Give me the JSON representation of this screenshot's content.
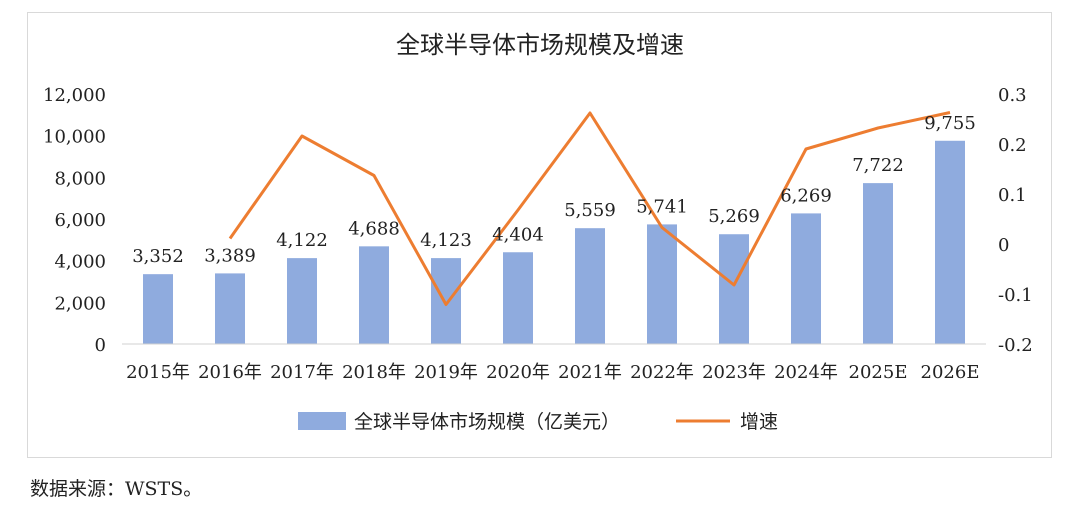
{
  "chart_data": {
    "type": "bar",
    "title": "全球半导体市场规模及增速",
    "categories": [
      "2015年",
      "2016年",
      "2017年",
      "2018年",
      "2019年",
      "2020年",
      "2021年",
      "2022年",
      "2023年",
      "2024年",
      "2025E",
      "2026E"
    ],
    "series": [
      {
        "name": "全球半导体市场规模（亿美元）",
        "type": "bar",
        "axis": "left",
        "color": "#8fabde",
        "values": [
          3352,
          3389,
          4122,
          4688,
          4123,
          4404,
          5559,
          5741,
          5269,
          6269,
          7722,
          9755
        ],
        "labels": [
          "3,352",
          "3,389",
          "4,122",
          "4,688",
          "4,123",
          "4,404",
          "5,559",
          "5,741",
          "5,269",
          "6,269",
          "7,722",
          "9,755"
        ]
      },
      {
        "name": "增速",
        "type": "line",
        "axis": "right",
        "color": "#ed7d31",
        "values": [
          null,
          0.011,
          0.216,
          0.137,
          -0.121,
          0.068,
          0.262,
          0.033,
          -0.082,
          0.19,
          0.232,
          0.263
        ]
      }
    ],
    "y_left": {
      "ylim": [
        0,
        12000
      ],
      "ticks": [
        0,
        2000,
        4000,
        6000,
        8000,
        10000,
        12000
      ],
      "tick_labels": [
        "0",
        "2,000",
        "4,000",
        "6,000",
        "8,000",
        "10,000",
        "12,000"
      ]
    },
    "y_right": {
      "ylim": [
        -0.2,
        0.3
      ],
      "ticks": [
        -0.2,
        -0.1,
        0,
        0.1,
        0.2,
        0.3
      ],
      "tick_labels": [
        "-0.2",
        "-0.1",
        "0",
        "0.1",
        "0.2",
        "0.3"
      ]
    },
    "grid": false,
    "legend": "bottom"
  },
  "source_note": "数据来源：WSTS。"
}
